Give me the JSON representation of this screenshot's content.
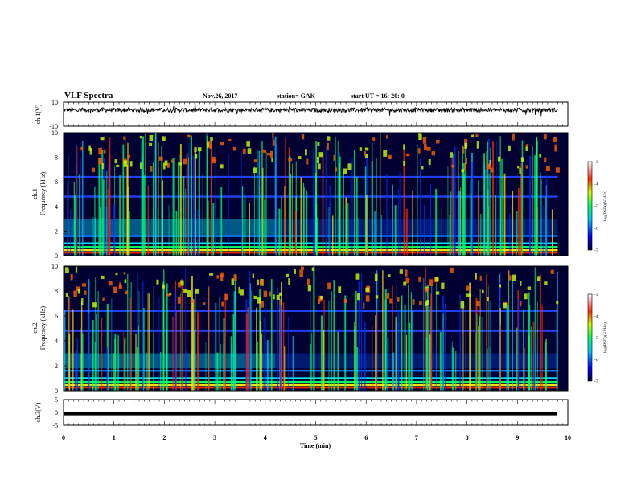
{
  "header": {
    "title": "VLF Spectra",
    "date": "Nov.26, 2017",
    "station": "station= GAK",
    "start": "start  UT =   16: 20: 0"
  },
  "chart_data": [
    {
      "type": "line",
      "title": "",
      "ylabel": "ch.1(V)",
      "xlim": [
        0,
        10
      ],
      "ylim": [
        -10,
        10
      ],
      "y_ticks": [
        "10",
        "-10"
      ],
      "trace_level": 3.5,
      "trace_amplitude": 1.8
    },
    {
      "type": "heatmap",
      "ylabel_line1": "ch.1",
      "ylabel_line2": "Frequency (kHz)",
      "xlim": [
        0,
        10
      ],
      "ylim": [
        0,
        10
      ],
      "y_ticks": [
        "0",
        "2",
        "4",
        "6",
        "8",
        "10"
      ],
      "background_band_khz": [
        1.5,
        3.0
      ],
      "colorbar": {
        "label": "log(PSD)(V²/Hz)",
        "range": [
          -7,
          -3
        ],
        "ticks": [
          "-3",
          "-4",
          "-5",
          "-6",
          "-7"
        ]
      }
    },
    {
      "type": "heatmap",
      "ylabel_line1": "ch.2",
      "ylabel_line2": "Frequency (kHz)",
      "xlim": [
        0,
        10
      ],
      "ylim": [
        0,
        10
      ],
      "y_ticks": [
        "0",
        "2",
        "4",
        "6",
        "8",
        "10"
      ],
      "background_band_khz": [
        1.8,
        3.0
      ],
      "colorbar": {
        "label": "log(PSD)(V²/Hz)",
        "range": [
          -7,
          -3
        ],
        "ticks": [
          "-3",
          "-4",
          "-5",
          "-6",
          "-7"
        ]
      }
    },
    {
      "type": "line",
      "ylabel": "ch.3(V)",
      "xlim": [
        0,
        10
      ],
      "ylim": [
        -5,
        5
      ],
      "y_ticks": [
        "5",
        "0",
        "-5"
      ],
      "trace_level": -0.5
    }
  ],
  "x_axis": {
    "label": "Time (min)",
    "ticks": [
      "0",
      "1",
      "2",
      "3",
      "4",
      "5",
      "6",
      "7",
      "8",
      "9",
      "10"
    ]
  },
  "colors": {
    "background": "#000033",
    "low": "#00008b",
    "mid": "#00ff80",
    "high": "#ff0000"
  }
}
